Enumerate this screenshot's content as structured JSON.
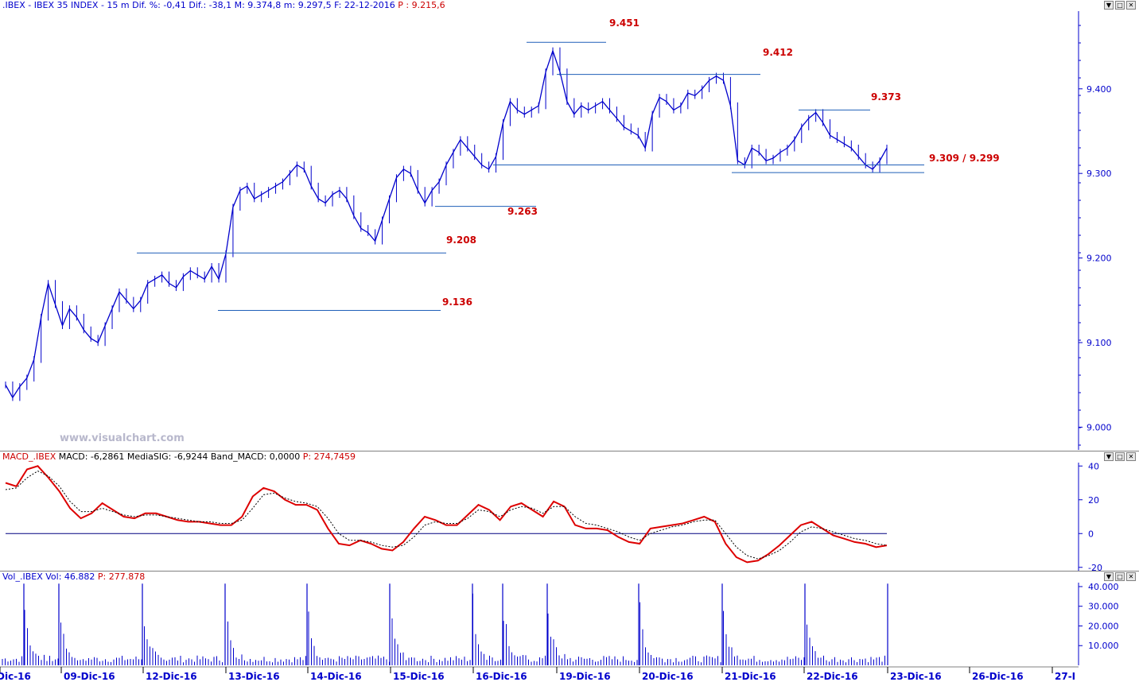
{
  "price_pane": {
    "header": {
      "symbol": ".IBEX",
      "name": "IBEX 35 INDEX",
      "interval": "15 m",
      "stats": "Dif. %: -0,41  Dif.: -38,1  M: 9.374,8  m: 9.297,5  F: 22-12-2016",
      "price_label": "P : 9.215,6"
    },
    "watermark": "www.visualchart.com"
  },
  "macd_pane": {
    "header": {
      "title": "MACD_.IBEX",
      "stats": "MACD: -6,2861  MediaSIG: -6,9244  Band_MACD: 0,0000",
      "price_label": "P: 274,7459"
    }
  },
  "volume_pane": {
    "header": {
      "title": "Vol_.IBEX",
      "stats": "Vol: 46.882",
      "price_label": "P: 277.878"
    }
  },
  "window_buttons": {
    "minimize": "▼",
    "restore": "□",
    "close": "✕"
  },
  "x_axis": {
    "labels": [
      "Dic-16",
      "09-Dic-16",
      "12-Dic-16",
      "13-Dic-16",
      "14-Dic-16",
      "15-Dic-16",
      "16-Dic-16",
      "19-Dic-16",
      "20-Dic-16",
      "21-Dic-16",
      "22-Dic-16",
      "23-Dic-16",
      "26-Dic-16",
      "27-I"
    ]
  },
  "colors": {
    "price": "#0000cc",
    "level": "#1f5fb8",
    "label_red": "#cc0000",
    "macd": "#dd0000",
    "signal": "#000000",
    "axis": "#0000cc"
  },
  "chart_data": [
    {
      "type": "line",
      "title": "IBEX 35 INDEX 15 m",
      "y_ticks": [
        "9.000",
        "9.100",
        "9.200",
        "9.300",
        "9.400"
      ],
      "y_tick_values": [
        9000,
        9100,
        9200,
        9300,
        9400
      ],
      "ylim": [
        8975,
        9490
      ],
      "day_labels": [
        "09-Dic-16",
        "12-Dic-16",
        "13-Dic-16",
        "14-Dic-16",
        "15-Dic-16",
        "16-Dic-16",
        "19-Dic-16",
        "20-Dic-16",
        "21-Dic-16",
        "22-Dic-16"
      ],
      "series": [
        {
          "values": [
            9050,
            9035,
            9048,
            9058,
            9080,
            9130,
            9170,
            9145,
            9120,
            9140,
            9130,
            9115,
            9105,
            9100,
            9120,
            9140,
            9160,
            9150,
            9140,
            9150,
            9170,
            9175,
            9180,
            9170,
            9165,
            9178,
            9185,
            9180,
            9175,
            9190,
            9175,
            9205,
            9260,
            9280,
            9285,
            9270,
            9275,
            9280,
            9285,
            9290,
            9300,
            9310,
            9305,
            9285,
            9270,
            9265,
            9275,
            9280,
            9270,
            9250,
            9235,
            9230,
            9220,
            9245,
            9270,
            9295,
            9305,
            9300,
            9280,
            9265,
            9280,
            9290,
            9310,
            9325,
            9340,
            9330,
            9320,
            9310,
            9305,
            9320,
            9360,
            9385,
            9375,
            9370,
            9375,
            9380,
            9420,
            9445,
            9420,
            9385,
            9370,
            9380,
            9375,
            9380,
            9385,
            9375,
            9365,
            9355,
            9350,
            9345,
            9330,
            9370,
            9390,
            9385,
            9375,
            9380,
            9395,
            9392,
            9400,
            9410,
            9415,
            9410,
            9380,
            9315,
            9310,
            9330,
            9325,
            9315,
            9318,
            9325,
            9330,
            9340,
            9355,
            9365,
            9372,
            9360,
            9345,
            9340,
            9335,
            9330,
            9320,
            9310,
            9305,
            9315,
            9330
          ]
        }
      ],
      "levels": [
        {
          "label": "9.451",
          "value": 9455
        },
        {
          "label": "9.412",
          "value": 9417
        },
        {
          "label": "9.373",
          "value": 9375
        },
        {
          "label": "9.309 / 9.299",
          "value": 9310,
          "value2": 9301
        },
        {
          "label": "9.263",
          "value": 9261
        },
        {
          "label": "9.208",
          "value": 9206
        },
        {
          "label": "9.136",
          "value": 9138
        }
      ]
    },
    {
      "type": "line",
      "title": "MACD_.IBEX",
      "y_ticks": [
        "40",
        "20",
        "0",
        "-20"
      ],
      "y_tick_values": [
        40,
        20,
        0,
        -20
      ],
      "ylim": [
        -22,
        42
      ],
      "zero_line": 0,
      "series": [
        {
          "name": "MACD",
          "values": [
            30,
            28,
            38,
            40,
            33,
            25,
            15,
            9,
            12,
            18,
            14,
            10,
            9,
            12,
            12,
            10,
            8,
            7,
            7,
            6,
            5,
            5,
            10,
            22,
            27,
            25,
            20,
            17,
            17,
            14,
            3,
            -6,
            -7,
            -4,
            -6,
            -9,
            -10,
            -5,
            3,
            10,
            8,
            5,
            5,
            11,
            17,
            14,
            8,
            16,
            18,
            14,
            10,
            19,
            16,
            5,
            3,
            3,
            2,
            -2,
            -5,
            -6,
            3,
            4,
            5,
            6,
            8,
            10,
            7,
            -6,
            -14,
            -17,
            -16,
            -12,
            -7,
            -1,
            5,
            7,
            3,
            -1,
            -3,
            -5,
            -6,
            -8,
            -7
          ]
        },
        {
          "name": "MediaSIG",
          "values": [
            26,
            27,
            33,
            37,
            34,
            28,
            19,
            13,
            13,
            15,
            13,
            11,
            10,
            11,
            11,
            10,
            9,
            8,
            7,
            7,
            6,
            6,
            8,
            15,
            23,
            24,
            21,
            19,
            18,
            16,
            9,
            0,
            -4,
            -4,
            -5,
            -7,
            -8,
            -7,
            -2,
            5,
            7,
            6,
            6,
            9,
            14,
            13,
            10,
            14,
            16,
            15,
            12,
            16,
            16,
            10,
            6,
            5,
            3,
            1,
            -2,
            -4,
            0,
            2,
            4,
            5,
            7,
            8,
            8,
            0,
            -8,
            -13,
            -15,
            -13,
            -10,
            -5,
            1,
            4,
            3,
            1,
            -1,
            -3,
            -4,
            -6,
            -7
          ]
        }
      ]
    },
    {
      "type": "bar",
      "title": "Vol_.IBEX",
      "y_ticks": [
        "40.000",
        "30.000",
        "20.000",
        "10.000"
      ],
      "y_tick_values": [
        40000,
        30000,
        20000,
        10000
      ],
      "ylim": [
        0,
        42000
      ]
    }
  ]
}
